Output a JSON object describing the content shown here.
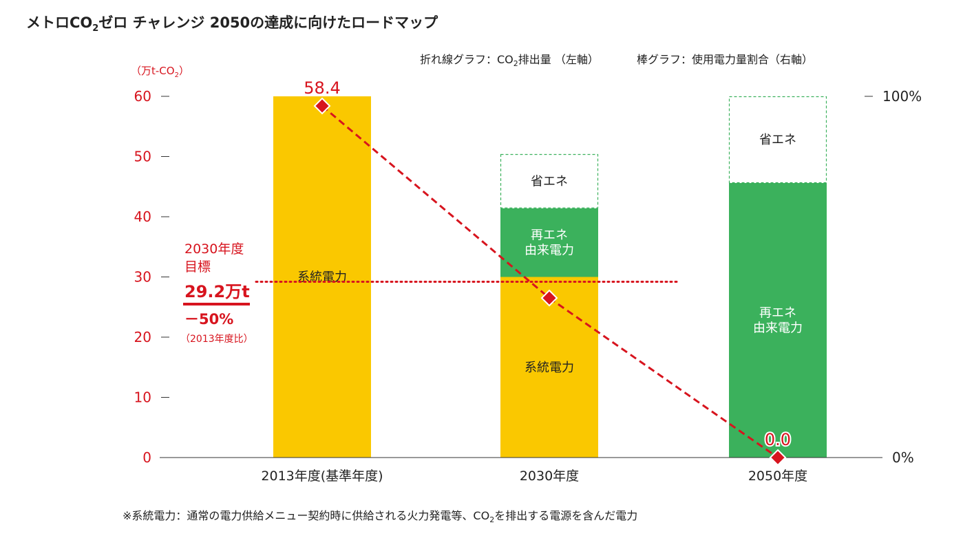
{
  "chart_data": {
    "type": "bar",
    "title": {
      "pre": "メトロCO",
      "sub": "2",
      "post": "ゼロ チャレンジ 2050の達成に向けたロードマップ"
    },
    "legend": {
      "line": {
        "pre": "折れ線グラフ：CO",
        "sub": "2",
        "post": "排出量 （左軸）"
      },
      "bar": "棒グラフ：使用電力量割合（右軸）"
    },
    "ylabel_left": {
      "pre": "（万t-CO",
      "sub": "2",
      "post": "）"
    },
    "ylim_left": [
      0,
      60
    ],
    "yticks_left": [
      "0",
      "10",
      "20",
      "30",
      "40",
      "50",
      "60"
    ],
    "ylim_right": [
      0,
      100
    ],
    "yticks_right": {
      "top": "100%",
      "bottom": "0%"
    },
    "categories": [
      "2013年度(基準年度)",
      "2030年度",
      "2050年度"
    ],
    "bars": [
      {
        "segments": [
          {
            "name": "系統電力",
            "value": 100,
            "color": "#fac800"
          }
        ]
      },
      {
        "segments": [
          {
            "name": "系統電力",
            "value": 50,
            "color": "#fac800"
          },
          {
            "name": "再エネ\n由来電力",
            "value": 19,
            "color": "#3bb15c"
          },
          {
            "name": "省エネ",
            "value": 15,
            "color": "dashed"
          }
        ]
      },
      {
        "segments": [
          {
            "name": "再エネ\n由来電力",
            "value": 76,
            "color": "#3bb15c"
          },
          {
            "name": "省エネ",
            "value": 24,
            "color": "dashed"
          }
        ]
      }
    ],
    "line_series": {
      "values": [
        58.4,
        26.5,
        0.0
      ],
      "labels": [
        "58.4",
        "",
        "0.0"
      ],
      "color": "#d7141e"
    },
    "target": {
      "value": 29.2,
      "label_year": "2030年度",
      "label_goal": "目標",
      "label_amount": "29.2万t",
      "label_percent": "－50%",
      "label_note": "（2013年度比）"
    },
    "footnote": {
      "pre": "※系統電力：通常の電力供給メニュー契約時に供給される火力発電等、CO",
      "sub": "2",
      "post": "を排出する電源を含んだ電力"
    },
    "colors": {
      "accent": "#d7141e",
      "yellow": "#fac800",
      "green": "#3bb15c",
      "green_dashed": "#3bb15c"
    }
  }
}
